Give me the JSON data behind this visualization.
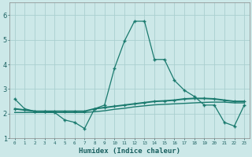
{
  "x": [
    0,
    1,
    2,
    3,
    4,
    5,
    6,
    7,
    8,
    9,
    10,
    11,
    12,
    13,
    14,
    15,
    16,
    17,
    18,
    19,
    20,
    21,
    22,
    23
  ],
  "line1": [
    2.6,
    2.2,
    2.1,
    2.1,
    2.05,
    1.75,
    1.65,
    1.4,
    2.2,
    2.35,
    3.85,
    4.95,
    5.75,
    5.75,
    4.2,
    4.2,
    3.35,
    2.95,
    2.7,
    2.35,
    2.35,
    1.65,
    1.5,
    2.35
  ],
  "line2": [
    2.2,
    2.15,
    2.1,
    2.1,
    2.1,
    2.1,
    2.1,
    2.1,
    2.2,
    2.25,
    2.3,
    2.35,
    2.4,
    2.45,
    2.5,
    2.52,
    2.55,
    2.6,
    2.62,
    2.62,
    2.6,
    2.55,
    2.5,
    2.5
  ],
  "line3": [
    2.05,
    2.05,
    2.05,
    2.05,
    2.05,
    2.05,
    2.05,
    2.05,
    2.08,
    2.12,
    2.18,
    2.22,
    2.28,
    2.32,
    2.36,
    2.38,
    2.4,
    2.42,
    2.44,
    2.46,
    2.47,
    2.47,
    2.44,
    2.44
  ],
  "line_color": "#1a7a6e",
  "bg_color": "#cce8e8",
  "grid_color": "#aacfcf",
  "xlabel": "Humidex (Indice chaleur)",
  "ylim": [
    1.0,
    6.5
  ],
  "xlim": [
    -0.5,
    23.5
  ],
  "yticks": [
    1,
    2,
    3,
    4,
    5,
    6
  ],
  "xtick_labels": [
    "0",
    "1",
    "2",
    "3",
    "4",
    "5",
    "6",
    "7",
    "8",
    "9",
    "1011",
    "1213",
    "1415",
    "1617",
    "1819",
    "2021",
    "2223"
  ]
}
